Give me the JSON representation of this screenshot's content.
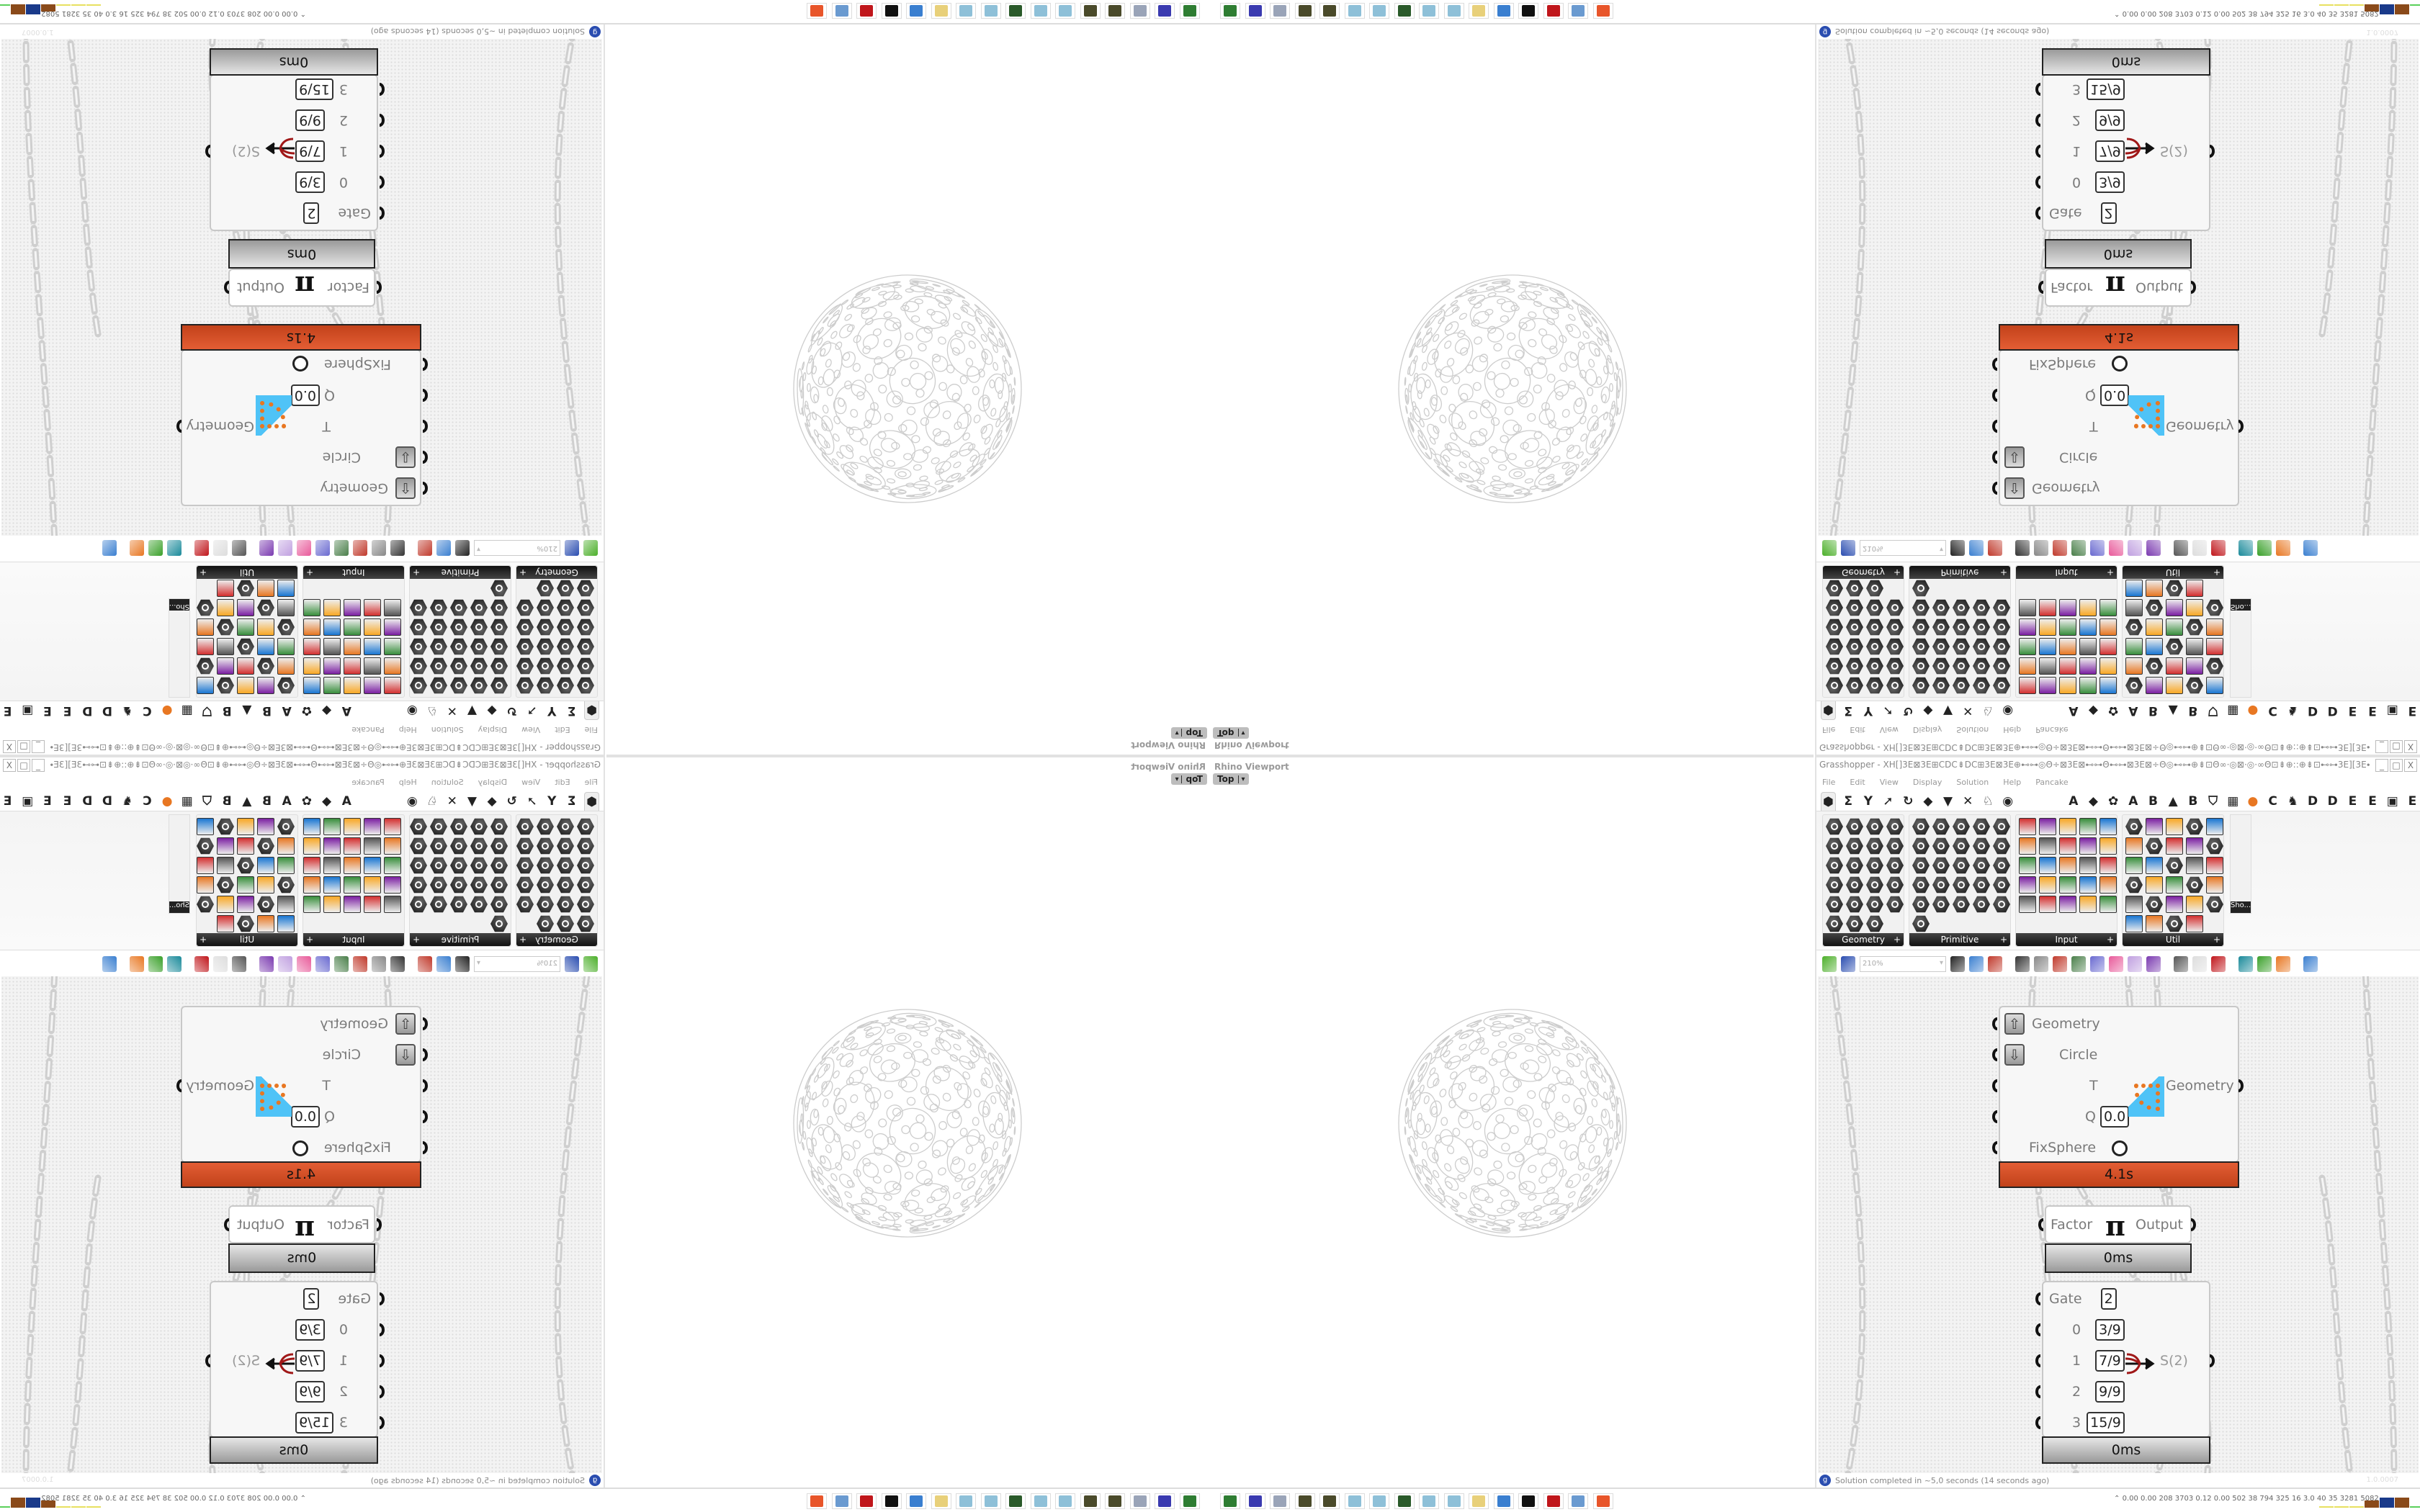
{
  "viewport": {
    "title": "Rhino Viewport",
    "view_button": "Top",
    "view_arrow": "▾"
  },
  "grasshopper": {
    "title": "Grasshopper - XH[]3E⊠3E⊞CDC⇟DC⊞3E⊠3E⊕⊷⊶◎Θ÷⊠3E⊠⊷⊶Θ⊷⊶⊠3E⊠÷Θ◎⊷⊶⊕⇟⊡Θ∞·◎⊠·◎·∞Θ⊡⇟⊕::⊕⇟⊡⊷⊶3E][3E⊷⊶⊡⇟⊕::⊕⇟⊡Θ∞·◎⊠·◎·∞Θ⊡⇟⊕⊷⊶◎Θ÷⊠3E⊠⊷⊶Θ⊷⊶...",
    "window_buttons": [
      "_",
      "□",
      "X"
    ],
    "menu": [
      "File",
      "Edit",
      "View",
      "Display",
      "Solution",
      "Help",
      "Pancake"
    ],
    "tabs_left": [
      "⬢",
      "Σ",
      "Y",
      "➚",
      "↻",
      "◆",
      "▼",
      "✕",
      "♘",
      "◉"
    ],
    "tabs_right": [
      "A",
      "◆",
      "✿",
      "A",
      "B",
      "▲",
      "B",
      "⛉",
      "▦",
      "●",
      "C",
      "♞",
      "D",
      "D",
      "E",
      "E",
      "▣",
      "E"
    ],
    "accent_tab_color": "#e87722",
    "ribbon_panels": [
      {
        "label": "Geometry",
        "icons": 23,
        "columns": 4,
        "style": "hex"
      },
      {
        "label": "Primitive",
        "icons": 26,
        "columns": 5,
        "style": "hex"
      },
      {
        "label": "Input",
        "icons": 25,
        "columns": 5,
        "style": "square"
      },
      {
        "label": "Util",
        "icons": 29,
        "columns": 5,
        "style": "mixed"
      }
    ],
    "panel_expand": "+",
    "overflow_panel": {
      "label": "Sho..."
    },
    "toolbar": {
      "zoom_value": "210%",
      "icons": [
        {
          "name": "open-file",
          "color": "#4caf2a"
        },
        {
          "name": "save-file",
          "color": "#2a4db0"
        },
        {
          "name": "zoom-extents",
          "color": "#222222"
        },
        {
          "name": "preview-eye",
          "color": "#3a7fd0"
        },
        {
          "name": "sketch",
          "color": "#c0392b"
        },
        {
          "name": "bake",
          "color": "#333333"
        },
        {
          "name": "email",
          "color": "#888888"
        },
        {
          "name": "gha-export",
          "color": "#c0392b"
        },
        {
          "name": "window",
          "color": "#4a7f4a"
        },
        {
          "name": "search",
          "color": "#6a6ad0"
        },
        {
          "name": "package",
          "color": "#e85a9a"
        },
        {
          "name": "bulb",
          "color": "#c0a0e0"
        },
        {
          "name": "dna",
          "color": "#7a3ab0"
        },
        {
          "name": "shaded-gray",
          "color": "#555555"
        },
        {
          "name": "wire-display",
          "color": "#dddddd"
        },
        {
          "name": "shaded-red",
          "color": "#c0161b"
        },
        {
          "name": "shaded-teal",
          "color": "#1a8a9a"
        },
        {
          "name": "shaded-green",
          "color": "#3aa02a"
        },
        {
          "name": "shaded-orange",
          "color": "#e87722"
        },
        {
          "name": "blue-sphere",
          "color": "#3a7fd0"
        }
      ]
    },
    "components": {
      "main": {
        "inputs": [
          "Geometry",
          "Circle",
          "T",
          "Q",
          "FixSphere"
        ],
        "q_value": "0.0",
        "output": "Geometry",
        "time": "4.1s",
        "time_color": "#d9502a"
      },
      "pi": {
        "input": "Factor",
        "symbol": "π",
        "output": "Output",
        "time": "0ms"
      },
      "gate": {
        "inputs": [
          {
            "label": "Gate",
            "value": "2"
          },
          {
            "label": "0",
            "value": "3/9"
          },
          {
            "label": "1",
            "value": "7/9"
          },
          {
            "label": "2",
            "value": "9/9"
          },
          {
            "label": "3",
            "value": "15/9"
          }
        ],
        "output": "S(2)",
        "time": "0ms"
      }
    },
    "status": "Solution completed in ~5,0 seconds (14 seconds ago)",
    "version": "1.0.0007"
  },
  "taskbar": {
    "icons": [
      {
        "name": "app-green",
        "color": "#2e7d32"
      },
      {
        "name": "floppy-64",
        "color": "#3a3ab0"
      },
      {
        "name": "scroll",
        "color": "#9aa4b8"
      },
      {
        "name": "globe-dark",
        "color": "#4a4a2a"
      },
      {
        "name": "globe-dark-2",
        "color": "#4a4a2a"
      },
      {
        "name": "notepad",
        "color": "#8ec0d8"
      },
      {
        "name": "notepad-2",
        "color": "#8ec0d8"
      },
      {
        "name": "monitor",
        "color": "#2a5a2a"
      },
      {
        "name": "notepad-3",
        "color": "#8ec0d8"
      },
      {
        "name": "notepad-4",
        "color": "#8ec0d8"
      },
      {
        "name": "folder",
        "color": "#e8d07a"
      },
      {
        "name": "remote-desktop",
        "color": "#3a7fd0"
      },
      {
        "name": "rhino",
        "color": "#111111"
      },
      {
        "name": "red-app",
        "color": "#c0161b"
      },
      {
        "name": "calculator",
        "color": "#6a9ad0"
      },
      {
        "name": "firefox",
        "color": "#e8552a"
      }
    ],
    "meters": "0.00 0.00 208 3703 0.12 0.00 502 38 794 325 16 3.0 40 35 3281 5082",
    "meter_caret": "⌃",
    "meter_bars": [
      {
        "level": 0.1,
        "color": "#e8e060"
      },
      {
        "level": 0.1,
        "color": "#e8e060"
      },
      {
        "level": 0.1,
        "color": "#e8e060"
      },
      {
        "level": 0.6,
        "color": "#8a4a1a"
      },
      {
        "level": 0.9,
        "color": "#1a3a8a"
      },
      {
        "level": 0.9,
        "color": "#8a4a1a"
      },
      {
        "level": 0.1,
        "color": "#5ad05a"
      },
      {
        "level": 0.3,
        "color": "#c0161b"
      }
    ]
  }
}
